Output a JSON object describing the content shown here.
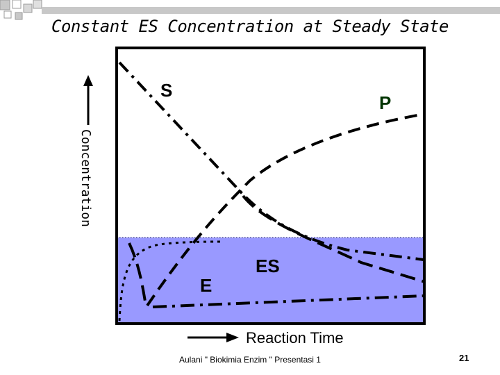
{
  "slide": {
    "title": "Constant ES Concentration at Steady State",
    "footer": "Aulani \" Biokimia Enzim \" Presentasi 1",
    "page_number": "21"
  },
  "diagram": {
    "y_axis_label": "Concentration",
    "x_axis_label": "Reaction Time",
    "curves": [
      {
        "id": "S",
        "label": "S",
        "style": "dash-dot"
      },
      {
        "id": "P",
        "label": "P",
        "style": "dashed"
      },
      {
        "id": "E",
        "label": "E",
        "style": "long-dash"
      },
      {
        "id": "ES",
        "label": "ES",
        "style": "dash-dot"
      }
    ],
    "colors": {
      "steady_state_band": "#9999ff",
      "product_label": "#003300",
      "frame": "#000000",
      "decoration": "#c0c0c0"
    }
  }
}
